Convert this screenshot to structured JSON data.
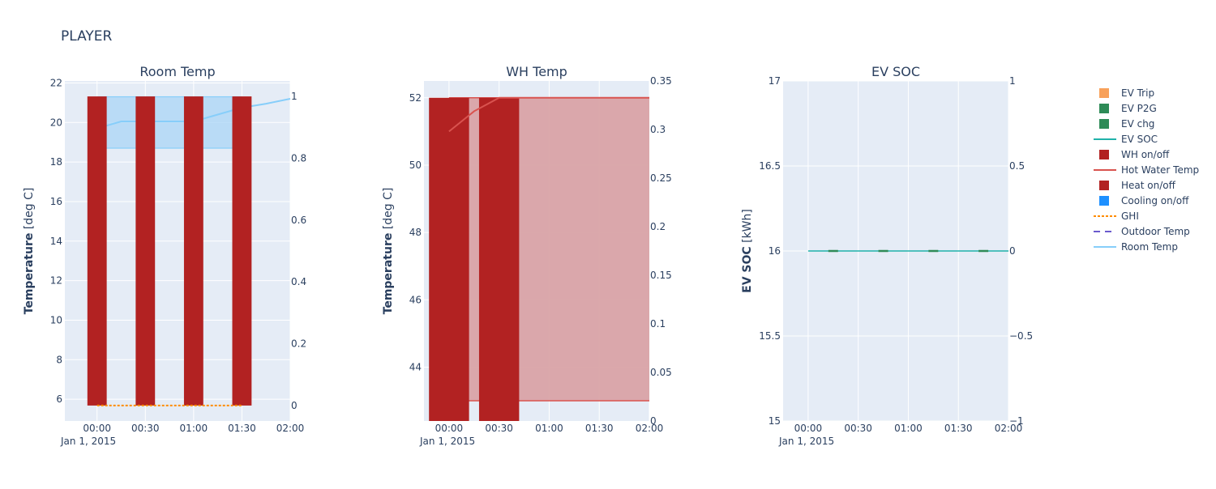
{
  "page_title": "PLAYER",
  "date_label": "Jan 1, 2015",
  "legend": [
    {
      "label": "EV Trip",
      "kind": "square",
      "color": "#f8a15a"
    },
    {
      "label": "EV P2G",
      "kind": "square",
      "color": "#2e8b57"
    },
    {
      "label": "EV chg",
      "kind": "square",
      "color": "#2e8b57"
    },
    {
      "label": "EV SOC",
      "kind": "line",
      "color": "#20b2aa"
    },
    {
      "label": "WH on/off",
      "kind": "square",
      "color": "#b22222"
    },
    {
      "label": "Hot Water Temp",
      "kind": "line",
      "color": "#d9534f"
    },
    {
      "label": "Heat on/off",
      "kind": "square",
      "color": "#b22222"
    },
    {
      "label": "Cooling on/off",
      "kind": "square",
      "color": "#1e90ff"
    },
    {
      "label": "GHI",
      "kind": "dot",
      "color": "#ff8c00"
    },
    {
      "label": "Outdoor Temp",
      "kind": "dash",
      "color": "#6a5acd"
    },
    {
      "label": "Room Temp",
      "kind": "line",
      "color": "#87cefa"
    }
  ],
  "chart_data": [
    {
      "id": "room",
      "type": "line",
      "title": "Room Temp",
      "ylabel_bold": "Temperature",
      "ylabel_unit": " [deg C]",
      "x_ticks": [
        "00:00",
        "00:30",
        "01:00",
        "01:30",
        "02:00"
      ],
      "x_range": [
        -20,
        120
      ],
      "ylim": [
        4.9,
        22.1
      ],
      "y_ticks": [
        6,
        8,
        10,
        12,
        14,
        16,
        18,
        20,
        22
      ],
      "y2lim": [
        -0.05,
        1.05
      ],
      "y2_ticks": [
        0,
        0.2,
        0.4,
        0.6,
        0.8,
        1
      ],
      "y2_tick_labels": [
        "0",
        "0.2",
        "0.4",
        "0.6",
        "0.8",
        "1"
      ],
      "band": {
        "x": [
          0,
          90
        ],
        "low": 18.7,
        "high": 21.3
      },
      "room_temp": {
        "x": [
          0,
          15,
          30,
          45,
          60,
          75,
          90,
          105,
          120
        ],
        "y": [
          19.7,
          20.05,
          20.05,
          20.05,
          20.05,
          20.4,
          20.75,
          20.95,
          21.2
        ]
      },
      "heat_bars": {
        "x": [
          0,
          30,
          60,
          90
        ],
        "width": 12,
        "base": 0,
        "values": [
          1,
          1,
          1,
          1
        ]
      },
      "ghi": {
        "x": [
          0,
          90
        ],
        "y": [
          0,
          0
        ]
      }
    },
    {
      "id": "wh",
      "type": "area",
      "title": "WH Temp",
      "ylabel_bold": "Temperature",
      "ylabel_unit": " [deg C]",
      "x_ticks": [
        "00:00",
        "00:30",
        "01:00",
        "01:30",
        "02:00"
      ],
      "x_range": [
        -15,
        120
      ],
      "ylim": [
        42.4,
        52.5
      ],
      "y_ticks": [
        44,
        46,
        48,
        50,
        52
      ],
      "y2lim": [
        0,
        0.35
      ],
      "y2_ticks": [
        0,
        0.05,
        0.1,
        0.15,
        0.2,
        0.25,
        0.3,
        0.35
      ],
      "y2_tick_labels": [
        "0",
        "0.05",
        "0.1",
        "0.15",
        "0.2",
        "0.25",
        "0.3",
        "0.35"
      ],
      "water_band": {
        "x": [
          0,
          120
        ],
        "low": 43.0,
        "high": 52.0
      },
      "hot_water": {
        "x": [
          0,
          15,
          30,
          60,
          90,
          120
        ],
        "y": [
          51.0,
          51.6,
          52.0,
          52.0,
          52.0,
          52.0
        ]
      },
      "wh_bars": {
        "x": [
          0,
          30
        ],
        "width": 24,
        "values": [
          52.0,
          52.0
        ]
      }
    },
    {
      "id": "ev",
      "type": "line",
      "title": "EV SOC",
      "ylabel_bold": "EV SOC",
      "ylabel_unit": " [kWh]",
      "x_ticks": [
        "00:00",
        "00:30",
        "01:00",
        "01:30",
        "02:00"
      ],
      "x_range": [
        -15,
        120
      ],
      "ylim": [
        15,
        17
      ],
      "y_ticks": [
        15,
        15.5,
        16,
        16.5,
        17
      ],
      "y2lim": [
        -1,
        1
      ],
      "y2_ticks": [
        -1,
        -0.5,
        0,
        0.5,
        1
      ],
      "y2_tick_labels": [
        "−1",
        "−0.5",
        "0",
        "0.5",
        "1"
      ],
      "ev_soc": {
        "x": [
          0,
          15,
          30,
          45,
          60,
          75,
          90,
          105,
          120
        ],
        "y": [
          16,
          16,
          16,
          16,
          16,
          16,
          16,
          16,
          16
        ]
      },
      "ev_chg_marks": {
        "x": [
          15,
          45,
          75,
          105
        ],
        "y": [
          16,
          16,
          16,
          16
        ]
      }
    }
  ]
}
